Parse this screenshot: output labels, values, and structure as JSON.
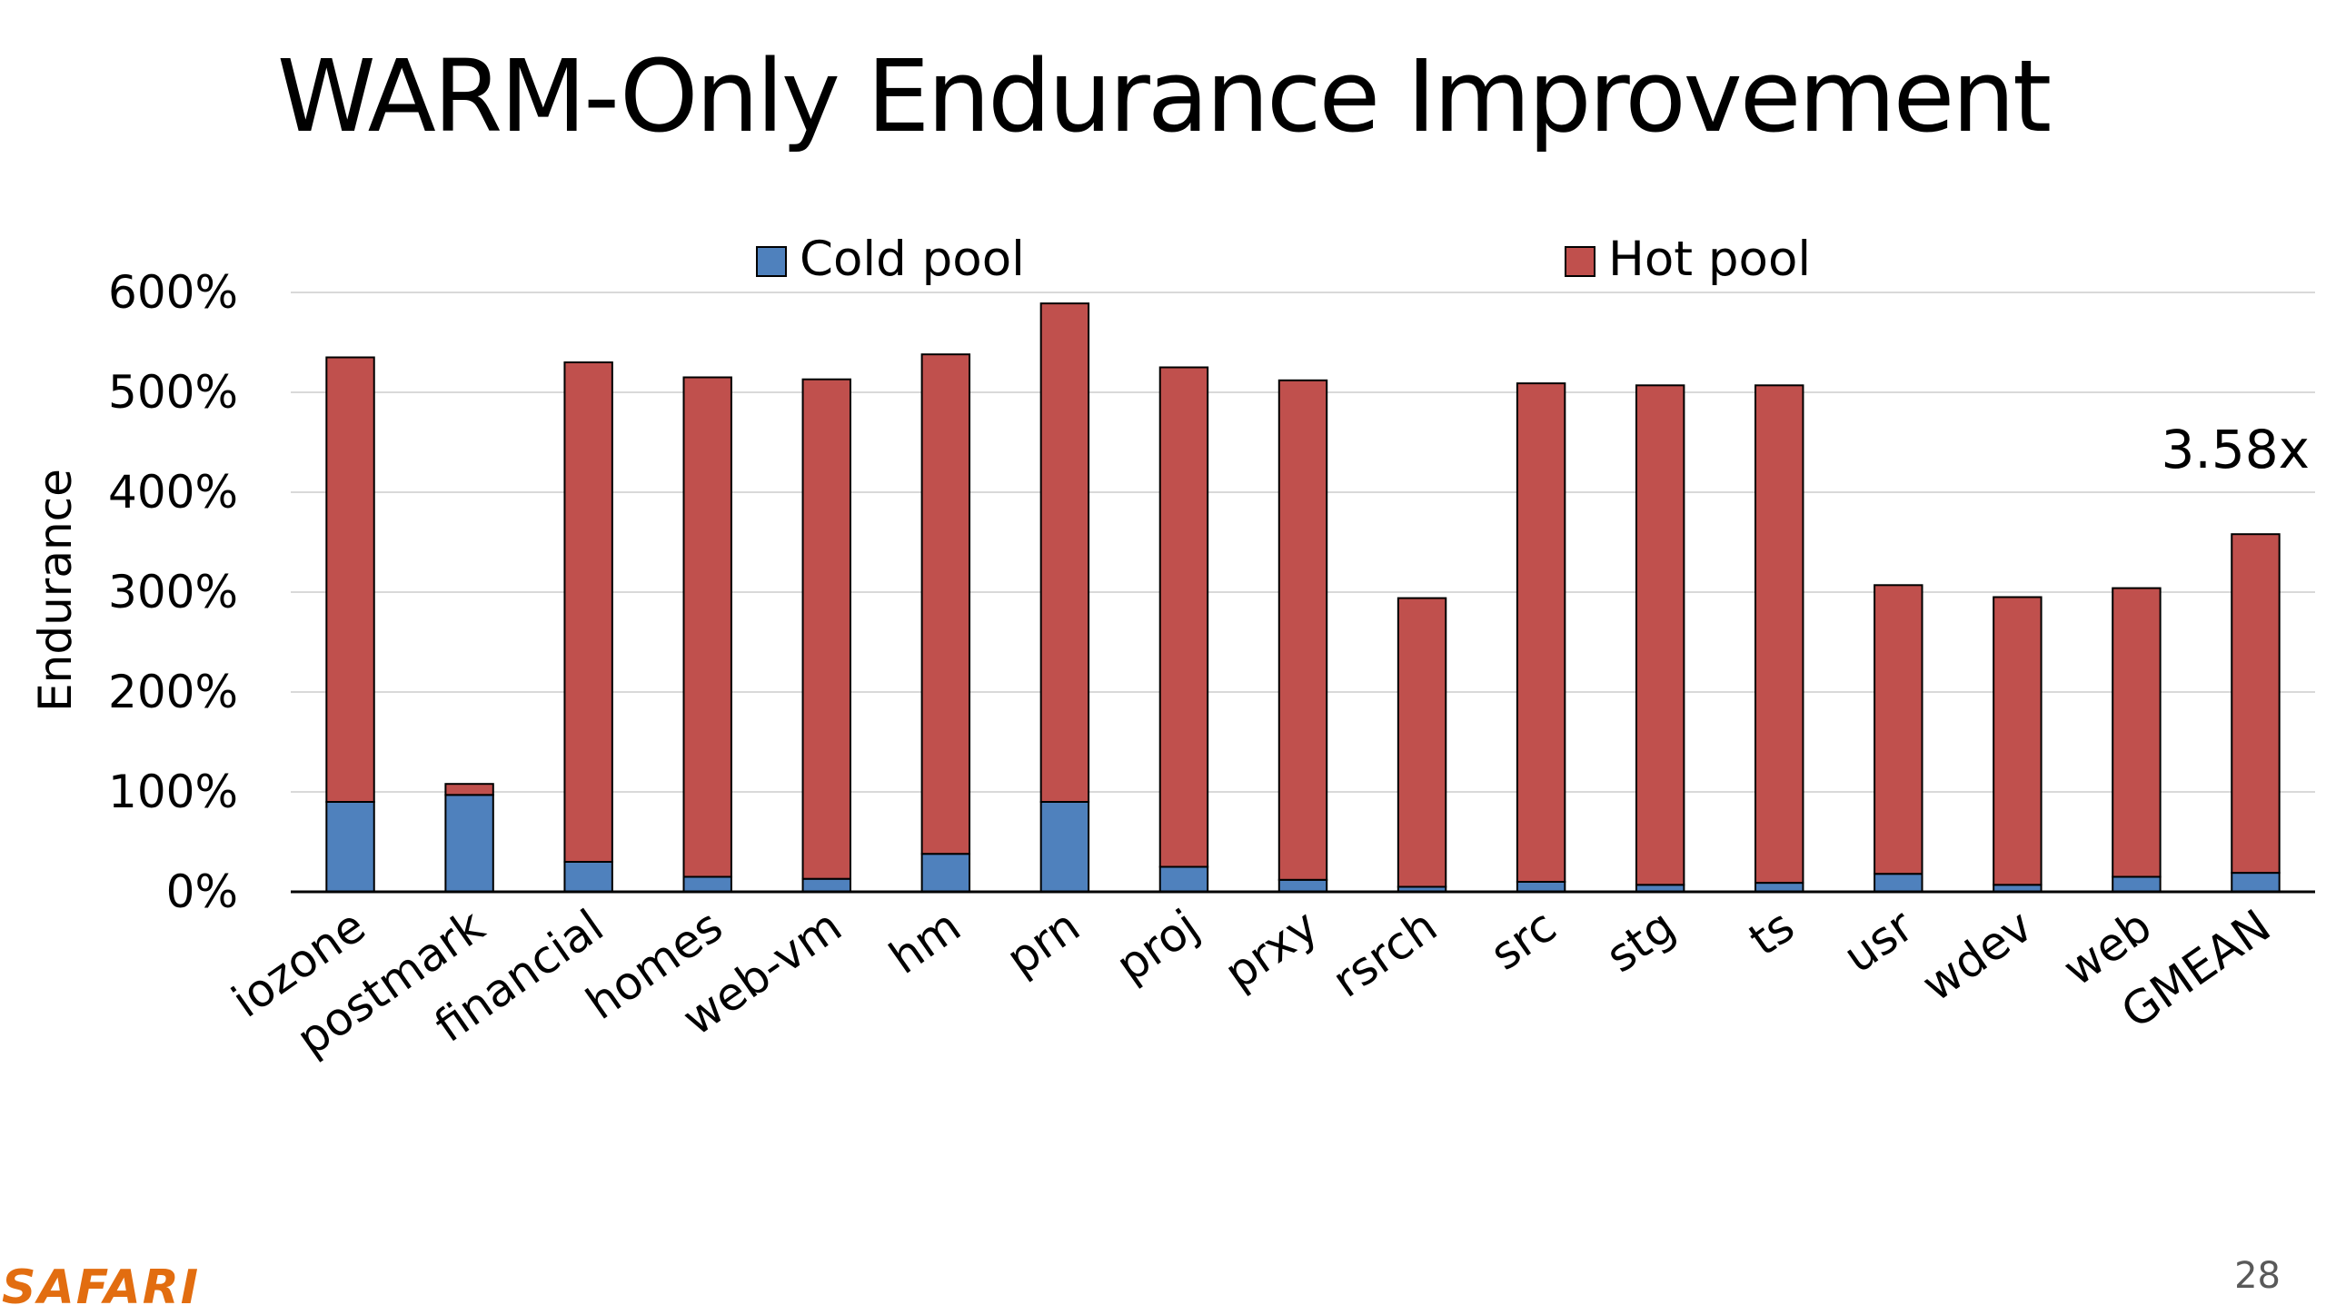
{
  "slide": {
    "title": "WARM-Only Endurance Improvement",
    "logo": "SAFARI",
    "page_number": "28"
  },
  "colors": {
    "cold": "#4f81bd",
    "hot": "#c0504d",
    "grid": "#d9d9d9",
    "axis": "#000000",
    "bar_outline": "#000000",
    "logo": "#e26d10"
  },
  "chart_data": {
    "type": "bar",
    "stacked": true,
    "title": "",
    "xlabel": "",
    "ylabel": "Endurance",
    "ylim": [
      0,
      600
    ],
    "yticks": [
      0,
      100,
      200,
      300,
      400,
      500,
      600
    ],
    "ytick_labels": [
      "0%",
      "100%",
      "200%",
      "300%",
      "400%",
      "500%",
      "600%"
    ],
    "categories": [
      "iozone",
      "postmark",
      "financial",
      "homes",
      "web-vm",
      "hm",
      "prn",
      "proj",
      "prxy",
      "rsrch",
      "src",
      "stg",
      "ts",
      "usr",
      "wdev",
      "web",
      "GMEAN"
    ],
    "series": [
      {
        "name": "Cold pool",
        "values": [
          90,
          97,
          30,
          15,
          13,
          38,
          90,
          25,
          12,
          5,
          10,
          7,
          9,
          18,
          7,
          15,
          19
        ]
      },
      {
        "name": "Hot pool",
        "values": [
          445,
          11,
          500,
          500,
          500,
          500,
          499,
          500,
          500,
          289,
          499,
          500,
          498,
          289,
          288,
          289,
          339
        ]
      }
    ],
    "grid": true,
    "legend": "top",
    "annotations": [
      {
        "text": "3.58x",
        "category": "GMEAN"
      }
    ]
  }
}
